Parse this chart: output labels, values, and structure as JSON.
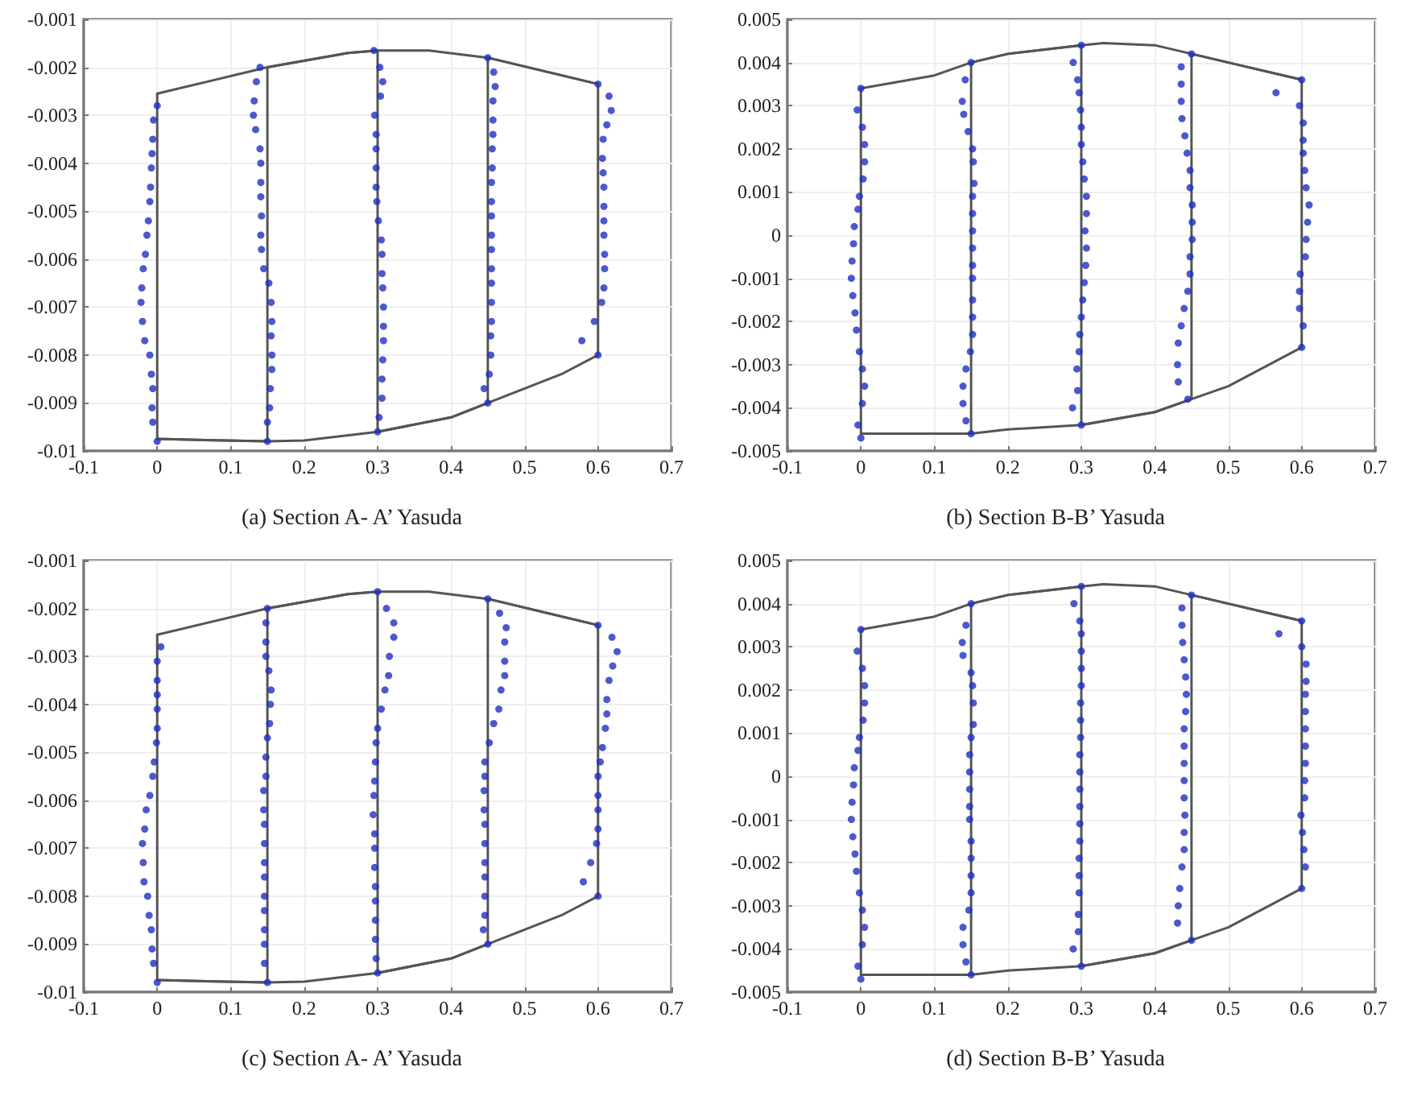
{
  "chart_data": [
    {
      "type": "scatter",
      "title": "(a) Section A- A’ Yasuda",
      "xlim": [
        -0.1,
        0.7
      ],
      "xticks": [
        -0.1,
        0,
        0.1,
        0.2,
        0.3,
        0.4,
        0.5,
        0.6,
        0.7
      ],
      "ylim": [
        -0.01,
        -0.001
      ],
      "yticks": [
        -0.01,
        -0.009,
        -0.008,
        -0.007,
        -0.006,
        -0.005,
        -0.004,
        -0.003,
        -0.002,
        -0.001
      ],
      "grid": true,
      "marker": "circle",
      "line_style": "solid",
      "series": [
        {
          "type": "line",
          "marker": "none",
          "color": "#555555",
          "x": [
            0,
            0.15,
            0.26,
            0.3,
            0.37,
            0.45,
            0.6
          ],
          "values": [
            -0.00255,
            -0.002,
            -0.0017,
            -0.00165,
            -0.00165,
            -0.0018,
            -0.00235
          ]
        },
        {
          "type": "line",
          "marker": "none",
          "color": "#555555",
          "x": [
            0,
            0.15,
            0.2,
            0.3,
            0.4,
            0.45,
            0.55,
            0.6
          ],
          "values": [
            -0.00975,
            -0.0098,
            -0.00978,
            -0.0096,
            -0.0093,
            -0.009,
            -0.0084,
            -0.008
          ]
        },
        {
          "type": "line",
          "marker": "none",
          "color": "#555555",
          "x": [
            0,
            0,
            0.15,
            0.15,
            0.26,
            0.3,
            0.3,
            0.4,
            0.45,
            0.45,
            0.6,
            0.6
          ],
          "values": [
            -0.00255,
            -0.00975,
            -0.0098,
            -0.002,
            -0.0017,
            -0.00165,
            -0.0096,
            -0.0093,
            -0.009,
            -0.0018,
            -0.00235,
            -0.008
          ]
        },
        {
          "color": "#1f2fbf",
          "x": [
            0,
            -0.005,
            -0.006,
            -0.007,
            -0.008,
            -0.009,
            -0.01,
            -0.012,
            -0.014,
            -0.016,
            -0.019,
            -0.021,
            -0.022,
            -0.02,
            -0.017,
            -0.01,
            -0.008,
            -0.006,
            -0.007,
            -0.006,
            0
          ],
          "values": [
            -0.0028,
            -0.0031,
            -0.0035,
            -0.0038,
            -0.0041,
            -0.0045,
            -0.0048,
            -0.0052,
            -0.0055,
            -0.0059,
            -0.0062,
            -0.0066,
            -0.0069,
            -0.0073,
            -0.0077,
            -0.008,
            -0.0084,
            -0.0087,
            -0.0091,
            -0.0094,
            -0.0098
          ]
        },
        {
          "color": "#1f2fbf",
          "x": [
            0.14,
            0.135,
            0.132,
            0.131,
            0.134,
            0.14,
            0.141,
            0.141,
            0.141,
            0.142,
            0.141,
            0.142,
            0.145,
            0.152,
            0.155,
            0.156,
            0.155,
            0.156,
            0.156,
            0.154,
            0.153,
            0.15,
            0.15
          ],
          "values": [
            -0.002,
            -0.0023,
            -0.0027,
            -0.003,
            -0.0033,
            -0.0037,
            -0.004,
            -0.0044,
            -0.0047,
            -0.0051,
            -0.0055,
            -0.0058,
            -0.0062,
            -0.0065,
            -0.0069,
            -0.0073,
            -0.0076,
            -0.008,
            -0.0083,
            -0.0087,
            -0.0091,
            -0.0094,
            -0.0098
          ]
        },
        {
          "color": "#1f2fbf",
          "x": [
            0.295,
            0.303,
            0.307,
            0.304,
            0.296,
            0.298,
            0.298,
            0.298,
            0.298,
            0.299,
            0.301,
            0.305,
            0.306,
            0.306,
            0.307,
            0.308,
            0.308,
            0.308,
            0.307,
            0.306,
            0.306,
            0.302,
            0.3
          ],
          "values": [
            -0.00165,
            -0.002,
            -0.0023,
            -0.0026,
            -0.003,
            -0.0034,
            -0.0037,
            -0.0041,
            -0.0045,
            -0.0048,
            -0.0052,
            -0.0056,
            -0.0059,
            -0.0063,
            -0.0066,
            -0.007,
            -0.0074,
            -0.0077,
            -0.0081,
            -0.0085,
            -0.0089,
            -0.0093,
            -0.0096
          ]
        },
        {
          "color": "#1f2fbf",
          "x": [
            0.45,
            0.458,
            0.46,
            0.457,
            0.457,
            0.457,
            0.456,
            0.456,
            0.455,
            0.455,
            0.455,
            0.455,
            0.455,
            0.455,
            0.455,
            0.455,
            0.455,
            0.454,
            0.454,
            0.452,
            0.445,
            0.45
          ],
          "values": [
            -0.0018,
            -0.0021,
            -0.0024,
            -0.0027,
            -0.0031,
            -0.0034,
            -0.0037,
            -0.0041,
            -0.0044,
            -0.0048,
            -0.0051,
            -0.0055,
            -0.0058,
            -0.0062,
            -0.0065,
            -0.0069,
            -0.0073,
            -0.0076,
            -0.008,
            -0.0084,
            -0.0087,
            -0.009
          ]
        },
        {
          "color": "#1f2fbf",
          "x": [
            0.6,
            0.615,
            0.618,
            0.612,
            0.607,
            0.606,
            0.607,
            0.608,
            0.608,
            0.608,
            0.608,
            0.609,
            0.609,
            0.608,
            0.605,
            0.595,
            0.578,
            0.6
          ],
          "values": [
            -0.00235,
            -0.0026,
            -0.0029,
            -0.0032,
            -0.0035,
            -0.0039,
            -0.0042,
            -0.0045,
            -0.0049,
            -0.0052,
            -0.0055,
            -0.0059,
            -0.0062,
            -0.0066,
            -0.0069,
            -0.0073,
            -0.0077,
            -0.008
          ]
        }
      ]
    },
    {
      "type": "scatter",
      "title": "(b) Section B-B’ Yasuda",
      "xlim": [
        -0.1,
        0.7
      ],
      "xticks": [
        -0.1,
        0,
        0.1,
        0.2,
        0.3,
        0.4,
        0.5,
        0.6,
        0.7
      ],
      "ylim": [
        -0.005,
        0.005
      ],
      "yticks": [
        -0.005,
        -0.004,
        -0.003,
        -0.002,
        -0.001,
        0,
        0.001,
        0.002,
        0.003,
        0.004,
        0.005
      ],
      "grid": true,
      "marker": "circle",
      "line_style": "solid",
      "series": [
        {
          "type": "line",
          "marker": "none",
          "color": "#555555",
          "x": [
            0,
            0.1,
            0.15,
            0.2,
            0.3,
            0.33,
            0.4,
            0.45,
            0.5,
            0.6
          ],
          "values": [
            0.0034,
            0.0037,
            0.004,
            0.0042,
            0.0044,
            0.00445,
            0.0044,
            0.0042,
            0.004,
            0.0036
          ]
        },
        {
          "type": "line",
          "marker": "none",
          "color": "#555555",
          "x": [
            0,
            0.15,
            0.2,
            0.3,
            0.4,
            0.45,
            0.5,
            0.6
          ],
          "values": [
            -0.0046,
            -0.0046,
            -0.0045,
            -0.0044,
            -0.0041,
            -0.0038,
            -0.0035,
            -0.0026
          ]
        },
        {
          "type": "line",
          "marker": "none",
          "color": "#555555",
          "x": [
            0,
            0,
            0.15,
            0.15,
            0.2,
            0.3,
            0.3,
            0.4,
            0.45,
            0.45,
            0.5,
            0.6,
            0.6
          ],
          "values": [
            0.0034,
            -0.0046,
            -0.0046,
            0.004,
            0.0042,
            0.0044,
            -0.0044,
            -0.0041,
            -0.0038,
            0.0042,
            0.004,
            0.0036,
            -0.0026
          ]
        },
        {
          "color": "#1f2fbf",
          "x": [
            0,
            -0.005,
            0.002,
            0.005,
            0.005,
            0.003,
            -0.002,
            -0.004,
            -0.009,
            -0.01,
            -0.012,
            -0.013,
            -0.011,
            -0.008,
            -0.006,
            -0.002,
            0.002,
            0.005,
            0.002,
            -0.004,
            0
          ],
          "values": [
            0.0034,
            0.0029,
            0.0025,
            0.0021,
            0.0017,
            0.0013,
            0.0009,
            0.0006,
            0.0002,
            -0.0002,
            -0.0006,
            -0.001,
            -0.0014,
            -0.0018,
            -0.0022,
            -0.0027,
            -0.0031,
            -0.0035,
            -0.0039,
            -0.0044,
            -0.0047
          ]
        },
        {
          "color": "#1f2fbf",
          "x": [
            0.15,
            0.142,
            0.138,
            0.14,
            0.146,
            0.152,
            0.153,
            0.154,
            0.152,
            0.152,
            0.152,
            0.152,
            0.152,
            0.152,
            0.152,
            0.152,
            0.152,
            0.149,
            0.143,
            0.139,
            0.139,
            0.143,
            0.15
          ],
          "values": [
            0.004,
            0.0036,
            0.0031,
            0.0028,
            0.0024,
            0.002,
            0.0017,
            0.0012,
            0.0009,
            0.0005,
            0.0001,
            -0.0003,
            -0.0007,
            -0.001,
            -0.0015,
            -0.0019,
            -0.0023,
            -0.0027,
            -0.0031,
            -0.0035,
            -0.0039,
            -0.0043,
            -0.0046
          ]
        },
        {
          "color": "#1f2fbf",
          "x": [
            0.3,
            0.289,
            0.295,
            0.297,
            0.299,
            0.3,
            0.3,
            0.302,
            0.304,
            0.307,
            0.307,
            0.305,
            0.307,
            0.306,
            0.304,
            0.302,
            0.3,
            0.298,
            0.297,
            0.294,
            0.295,
            0.288,
            0.3
          ],
          "values": [
            0.0044,
            0.004,
            0.0036,
            0.0033,
            0.0029,
            0.0025,
            0.0021,
            0.0017,
            0.0013,
            0.0009,
            0.0005,
            0.0001,
            -0.0003,
            -0.0007,
            -0.0011,
            -0.0015,
            -0.0019,
            -0.0023,
            -0.0027,
            -0.0031,
            -0.0036,
            -0.004,
            -0.0044
          ]
        },
        {
          "color": "#1f2fbf",
          "x": [
            0.45,
            0.436,
            0.436,
            0.436,
            0.437,
            0.441,
            0.444,
            0.448,
            0.448,
            0.451,
            0.451,
            0.451,
            0.448,
            0.448,
            0.445,
            0.44,
            0.436,
            0.432,
            0.431,
            0.432,
            0.445
          ],
          "values": [
            0.0042,
            0.0039,
            0.0035,
            0.0031,
            0.0027,
            0.0023,
            0.0019,
            0.0015,
            0.0011,
            0.0007,
            0.0003,
            -0.0001,
            -0.0005,
            -0.0009,
            -0.0013,
            -0.0017,
            -0.0021,
            -0.0025,
            -0.003,
            -0.0034,
            -0.0038
          ]
        },
        {
          "color": "#1f2fbf",
          "x": [
            0.6,
            0.565,
            0.597,
            0.602,
            0.602,
            0.602,
            0.604,
            0.606,
            0.61,
            0.608,
            0.606,
            0.605,
            0.598,
            0.597,
            0.597,
            0.602,
            0.6
          ],
          "values": [
            0.0036,
            0.0033,
            0.003,
            0.0026,
            0.0022,
            0.0019,
            0.0015,
            0.0011,
            0.0007,
            0.0003,
            -0.0001,
            -0.0005,
            -0.0009,
            -0.0013,
            -0.0017,
            -0.0021,
            -0.0026
          ]
        }
      ]
    },
    {
      "type": "scatter",
      "title": "(c) Section A- A’ Yasuda",
      "xlim": [
        -0.1,
        0.7
      ],
      "xticks": [
        -0.1,
        0,
        0.1,
        0.2,
        0.3,
        0.4,
        0.5,
        0.6,
        0.7
      ],
      "ylim": [
        -0.01,
        -0.001
      ],
      "yticks": [
        -0.01,
        -0.009,
        -0.008,
        -0.007,
        -0.006,
        -0.005,
        -0.004,
        -0.003,
        -0.002,
        -0.001
      ],
      "grid": true,
      "marker": "circle",
      "line_style": "solid",
      "series": [
        {
          "type": "line",
          "marker": "none",
          "color": "#555555",
          "x": [
            0,
            0.15,
            0.26,
            0.3,
            0.37,
            0.45,
            0.6
          ],
          "values": [
            -0.00255,
            -0.002,
            -0.0017,
            -0.00165,
            -0.00165,
            -0.0018,
            -0.00235
          ]
        },
        {
          "type": "line",
          "marker": "none",
          "color": "#555555",
          "x": [
            0,
            0.15,
            0.2,
            0.3,
            0.4,
            0.45,
            0.55,
            0.6
          ],
          "values": [
            -0.00975,
            -0.0098,
            -0.00978,
            -0.0096,
            -0.0093,
            -0.009,
            -0.0084,
            -0.008
          ]
        },
        {
          "type": "line",
          "marker": "none",
          "color": "#555555",
          "x": [
            0,
            0,
            0.15,
            0.15,
            0.26,
            0.3,
            0.3,
            0.4,
            0.45,
            0.45,
            0.6,
            0.6
          ],
          "values": [
            -0.00255,
            -0.00975,
            -0.0098,
            -0.002,
            -0.0017,
            -0.00165,
            -0.0096,
            -0.0093,
            -0.009,
            -0.0018,
            -0.00235,
            -0.008
          ]
        },
        {
          "color": "#1f2fbf",
          "x": [
            0.005,
            0,
            0,
            0,
            0,
            0,
            -0.001,
            -0.004,
            -0.006,
            -0.01,
            -0.015,
            -0.017,
            -0.02,
            -0.019,
            -0.018,
            -0.013,
            -0.011,
            -0.008,
            -0.007,
            -0.005,
            0
          ],
          "values": [
            -0.0028,
            -0.0031,
            -0.0035,
            -0.0038,
            -0.0041,
            -0.0045,
            -0.0048,
            -0.0052,
            -0.0055,
            -0.0059,
            -0.0062,
            -0.0066,
            -0.0069,
            -0.0073,
            -0.0077,
            -0.008,
            -0.0084,
            -0.0087,
            -0.0091,
            -0.0094,
            -0.0098
          ]
        },
        {
          "color": "#1f2fbf",
          "x": [
            0.15,
            0.148,
            0.148,
            0.148,
            0.152,
            0.155,
            0.154,
            0.153,
            0.15,
            0.148,
            0.148,
            0.145,
            0.145,
            0.146,
            0.146,
            0.146,
            0.146,
            0.146,
            0.146,
            0.146,
            0.146,
            0.146,
            0.15
          ],
          "values": [
            -0.002,
            -0.0023,
            -0.0027,
            -0.003,
            -0.0033,
            -0.0037,
            -0.004,
            -0.0044,
            -0.0047,
            -0.0051,
            -0.0055,
            -0.0058,
            -0.0062,
            -0.0065,
            -0.0069,
            -0.0073,
            -0.0076,
            -0.008,
            -0.0083,
            -0.0087,
            -0.009,
            -0.0094,
            -0.0098
          ]
        },
        {
          "color": "#1f2fbf",
          "x": [
            0.3,
            0.312,
            0.322,
            0.322,
            0.316,
            0.315,
            0.31,
            0.305,
            0.3,
            0.298,
            0.297,
            0.296,
            0.295,
            0.294,
            0.296,
            0.296,
            0.296,
            0.297,
            0.297,
            0.297,
            0.297,
            0.298,
            0.3
          ],
          "values": [
            -0.00165,
            -0.002,
            -0.0023,
            -0.0026,
            -0.003,
            -0.0034,
            -0.0037,
            -0.0041,
            -0.0045,
            -0.0048,
            -0.0052,
            -0.0056,
            -0.0059,
            -0.0063,
            -0.0067,
            -0.007,
            -0.0074,
            -0.0078,
            -0.0081,
            -0.0085,
            -0.0089,
            -0.0093,
            -0.0096
          ]
        },
        {
          "color": "#1f2fbf",
          "x": [
            0.45,
            0.466,
            0.475,
            0.473,
            0.473,
            0.473,
            0.468,
            0.465,
            0.458,
            0.452,
            0.446,
            0.446,
            0.445,
            0.445,
            0.446,
            0.446,
            0.446,
            0.446,
            0.446,
            0.446,
            0.444,
            0.45
          ],
          "values": [
            -0.0018,
            -0.0021,
            -0.0024,
            -0.0027,
            -0.0031,
            -0.0034,
            -0.0037,
            -0.0041,
            -0.0044,
            -0.0048,
            -0.0052,
            -0.0055,
            -0.0058,
            -0.0062,
            -0.0065,
            -0.0069,
            -0.0073,
            -0.0076,
            -0.008,
            -0.0084,
            -0.0087,
            -0.009
          ]
        },
        {
          "color": "#1f2fbf",
          "x": [
            0.6,
            0.619,
            0.626,
            0.62,
            0.615,
            0.612,
            0.612,
            0.61,
            0.606,
            0.603,
            0.6,
            0.6,
            0.6,
            0.6,
            0.598,
            0.59,
            0.58,
            0.6
          ],
          "values": [
            -0.00235,
            -0.0026,
            -0.0029,
            -0.0032,
            -0.0035,
            -0.0039,
            -0.0042,
            -0.0045,
            -0.0049,
            -0.0052,
            -0.0055,
            -0.0059,
            -0.0062,
            -0.0066,
            -0.0069,
            -0.0073,
            -0.0077,
            -0.008
          ]
        }
      ]
    },
    {
      "type": "scatter",
      "title": "(d) Section B-B’ Yasuda",
      "xlim": [
        -0.1,
        0.7
      ],
      "xticks": [
        -0.1,
        0,
        0.1,
        0.2,
        0.3,
        0.4,
        0.5,
        0.6,
        0.7
      ],
      "ylim": [
        -0.005,
        0.005
      ],
      "yticks": [
        -0.005,
        -0.004,
        -0.003,
        -0.002,
        -0.001,
        0,
        0.001,
        0.002,
        0.003,
        0.004,
        0.005
      ],
      "grid": true,
      "marker": "circle",
      "line_style": "solid",
      "series": [
        {
          "type": "line",
          "marker": "none",
          "color": "#555555",
          "x": [
            0,
            0.1,
            0.15,
            0.2,
            0.3,
            0.33,
            0.4,
            0.45,
            0.5,
            0.6
          ],
          "values": [
            0.0034,
            0.0037,
            0.004,
            0.0042,
            0.0044,
            0.00445,
            0.0044,
            0.0042,
            0.004,
            0.0036
          ]
        },
        {
          "type": "line",
          "marker": "none",
          "color": "#555555",
          "x": [
            0,
            0.15,
            0.2,
            0.3,
            0.4,
            0.45,
            0.5,
            0.6
          ],
          "values": [
            -0.0046,
            -0.0046,
            -0.0045,
            -0.0044,
            -0.0041,
            -0.0038,
            -0.0035,
            -0.0026
          ]
        },
        {
          "type": "line",
          "marker": "none",
          "color": "#555555",
          "x": [
            0,
            0,
            0.15,
            0.15,
            0.2,
            0.3,
            0.3,
            0.4,
            0.45,
            0.45,
            0.5,
            0.6,
            0.6
          ],
          "values": [
            0.0034,
            -0.0046,
            -0.0046,
            0.004,
            0.0042,
            0.0044,
            -0.0044,
            -0.0041,
            -0.0038,
            0.0042,
            0.004,
            0.0036,
            -0.0026
          ]
        },
        {
          "color": "#1f2fbf",
          "x": [
            0,
            -0.005,
            0.002,
            0.005,
            0.005,
            0.003,
            -0.002,
            -0.004,
            -0.009,
            -0.01,
            -0.012,
            -0.013,
            -0.011,
            -0.008,
            -0.006,
            -0.002,
            0.002,
            0.005,
            0.002,
            -0.004,
            0
          ],
          "values": [
            0.0034,
            0.0029,
            0.0025,
            0.0021,
            0.0017,
            0.0013,
            0.0009,
            0.0006,
            0.0002,
            -0.0002,
            -0.0006,
            -0.001,
            -0.0014,
            -0.0018,
            -0.0022,
            -0.0027,
            -0.0031,
            -0.0035,
            -0.0039,
            -0.0044,
            -0.0047
          ]
        },
        {
          "color": "#1f2fbf",
          "x": [
            0.15,
            0.143,
            0.138,
            0.139,
            0.15,
            0.152,
            0.153,
            0.153,
            0.15,
            0.148,
            0.148,
            0.148,
            0.148,
            0.148,
            0.15,
            0.15,
            0.15,
            0.15,
            0.147,
            0.139,
            0.139,
            0.143,
            0.15
          ],
          "values": [
            0.004,
            0.0035,
            0.0031,
            0.0028,
            0.0024,
            0.0021,
            0.0017,
            0.0012,
            0.0009,
            0.0005,
            0.0001,
            -0.0003,
            -0.0007,
            -0.001,
            -0.0015,
            -0.0019,
            -0.0023,
            -0.0027,
            -0.0031,
            -0.0035,
            -0.0039,
            -0.0043,
            -0.0046
          ]
        },
        {
          "color": "#1f2fbf",
          "x": [
            0.3,
            0.29,
            0.298,
            0.3,
            0.3,
            0.3,
            0.3,
            0.299,
            0.299,
            0.299,
            0.298,
            0.298,
            0.298,
            0.298,
            0.298,
            0.298,
            0.297,
            0.297,
            0.297,
            0.296,
            0.296,
            0.289,
            0.3
          ],
          "values": [
            0.0044,
            0.004,
            0.0036,
            0.0033,
            0.0029,
            0.0025,
            0.0021,
            0.0017,
            0.0013,
            0.0009,
            0.0005,
            0.0001,
            -0.0003,
            -0.0007,
            -0.0011,
            -0.0015,
            -0.0019,
            -0.0023,
            -0.0027,
            -0.0032,
            -0.0036,
            -0.004,
            -0.0044
          ]
        },
        {
          "color": "#1f2fbf",
          "x": [
            0.45,
            0.437,
            0.437,
            0.438,
            0.44,
            0.442,
            0.443,
            0.442,
            0.44,
            0.44,
            0.44,
            0.44,
            0.44,
            0.441,
            0.44,
            0.44,
            0.437,
            0.434,
            0.432,
            0.431,
            0.45
          ],
          "values": [
            0.0042,
            0.0039,
            0.0035,
            0.0031,
            0.0027,
            0.0023,
            0.0019,
            0.0015,
            0.0011,
            0.0007,
            0.0003,
            -0.0001,
            -0.0005,
            -0.0009,
            -0.0013,
            -0.0017,
            -0.0021,
            -0.0026,
            -0.003,
            -0.0034,
            -0.0038
          ]
        },
        {
          "color": "#1f2fbf",
          "x": [
            0.6,
            0.569,
            0.6,
            0.606,
            0.606,
            0.605,
            0.605,
            0.605,
            0.605,
            0.605,
            0.604,
            0.604,
            0.599,
            0.601,
            0.603,
            0.605,
            0.6
          ],
          "values": [
            0.0036,
            0.0033,
            0.003,
            0.0026,
            0.0022,
            0.0019,
            0.0015,
            0.0011,
            0.0007,
            0.0003,
            -0.0001,
            -0.0005,
            -0.0009,
            -0.0013,
            -0.0017,
            -0.0021,
            -0.0026
          ]
        }
      ]
    }
  ]
}
